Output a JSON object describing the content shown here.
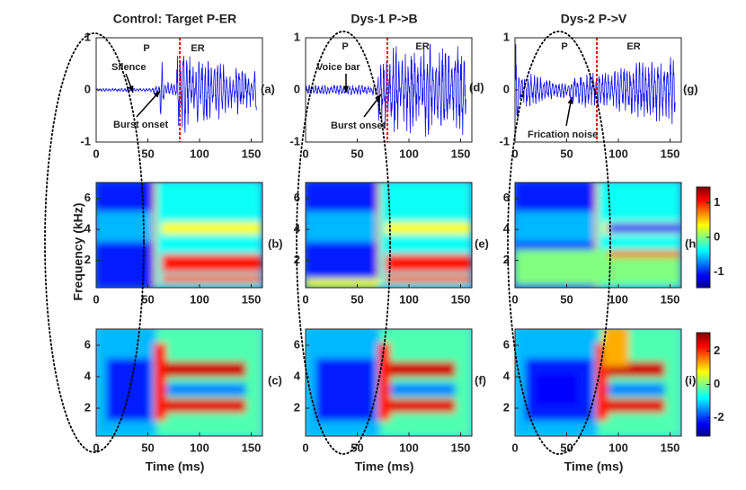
{
  "figure": {
    "columns": [
      {
        "title": "Control: Target P-ER",
        "segments": [
          "P",
          "ER"
        ],
        "annotations": [
          "Silence",
          "Burst onset"
        ],
        "panel_labels": [
          "(a)",
          "(b)",
          "(c)"
        ]
      },
      {
        "title": "Dys-1 P->B",
        "segments": [
          "P",
          "ER"
        ],
        "annotations": [
          "Voice bar",
          "Burst onset"
        ],
        "panel_labels": [
          "(d)",
          "(e)",
          "(f)"
        ]
      },
      {
        "title": "Dys-2 P->V",
        "segments": [
          "P",
          "ER"
        ],
        "annotations": [
          "Frication noise"
        ],
        "panel_labels": [
          "(g)",
          "(h)",
          "(i)"
        ]
      }
    ],
    "xticks": [
      0,
      50,
      100,
      150
    ],
    "waveform_yticks": [
      -1,
      0,
      1
    ],
    "spectrogram_yticks": [
      2,
      4,
      6
    ],
    "colorbars": [
      {
        "ticks": [
          1,
          0,
          -1
        ]
      },
      {
        "ticks": [
          2,
          0,
          -2
        ]
      }
    ],
    "y_label": "Frequency (kHz)",
    "x_label": "Time (ms)"
  }
}
